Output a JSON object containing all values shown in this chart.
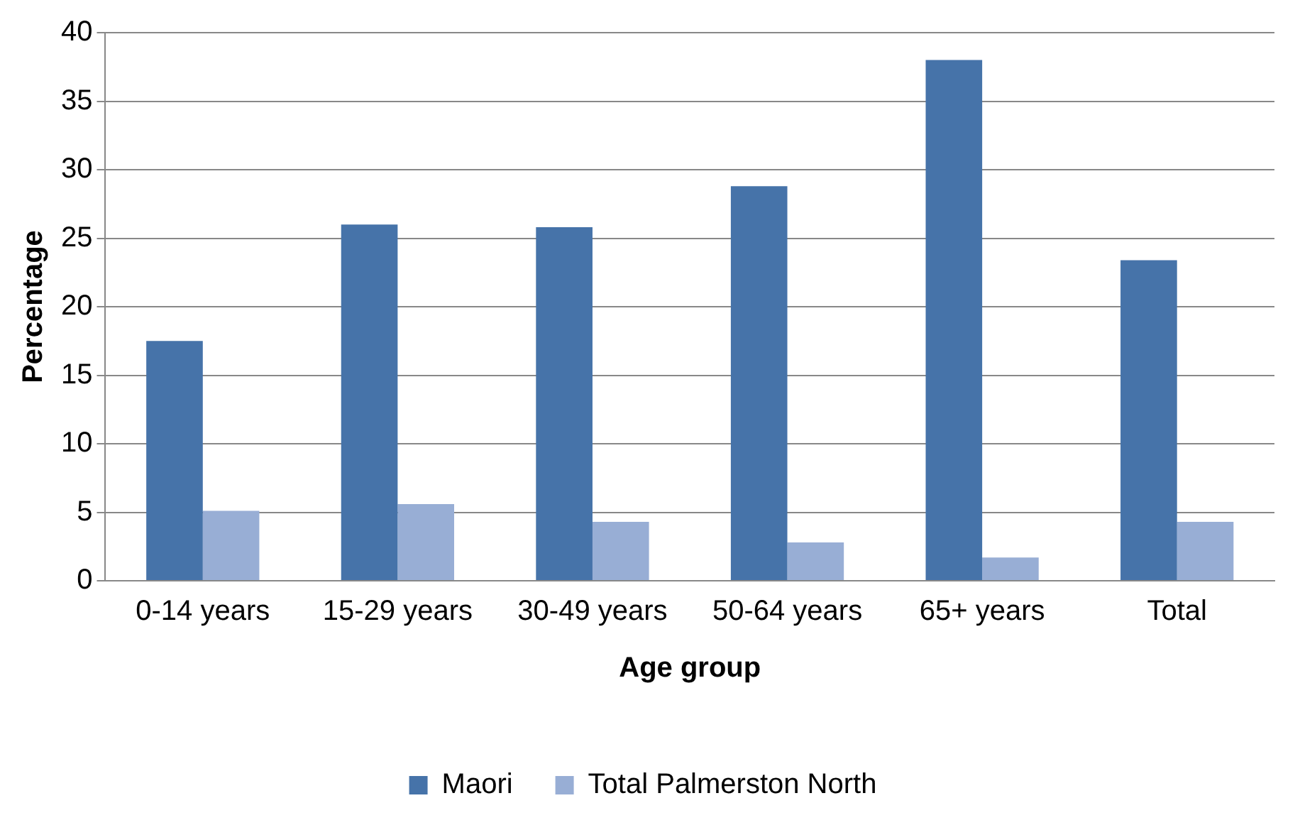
{
  "chart_data": {
    "type": "bar",
    "xlabel": "Age group",
    "ylabel": "Percentage",
    "categories": [
      "0-14 years",
      "15-29 years",
      "30-49 years",
      "50-64 years",
      "65+ years",
      "Total"
    ],
    "series": [
      {
        "name": "Maori",
        "color": "#4673a9",
        "values": [
          17.5,
          26.0,
          25.8,
          28.8,
          38.0,
          23.4
        ]
      },
      {
        "name": "Total Palmerston North",
        "color": "#98aed5",
        "values": [
          5.1,
          5.6,
          4.3,
          2.8,
          1.7,
          4.3
        ]
      }
    ],
    "ylim": [
      0,
      40
    ],
    "yticks": [
      0,
      5,
      10,
      15,
      20,
      25,
      30,
      35,
      40
    ],
    "grid": "y",
    "legend": "bottom"
  }
}
